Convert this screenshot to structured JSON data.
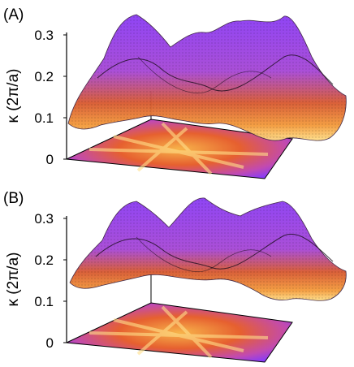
{
  "chart_data": [
    {
      "type": "surface",
      "panel_label": "(A)",
      "ylabel": "κ (2π/a)",
      "z_ticks": [
        "0",
        "0.1",
        "0.2",
        "0.3"
      ],
      "z_tick_values": [
        0,
        0.1,
        0.2,
        0.3
      ],
      "zlim": [
        0,
        0.3
      ],
      "surface": {
        "kind": "3D surface with black dot mesh over purple-to-orange colormap",
        "min_kappa": 0.07,
        "max_kappa": 0.33,
        "corner_kappa": 0.13,
        "edge_peak_kappa": 0.31
      },
      "projection": "color map projected on the base plane",
      "colormap": [
        "#7a3cff",
        "#b243c9",
        "#e8583a",
        "#f7a23c",
        "#ffe487"
      ],
      "grid": false,
      "legend": "none"
    },
    {
      "type": "surface",
      "panel_label": "(B)",
      "ylabel": "κ (2π/a)",
      "z_ticks": [
        "0",
        "0.1",
        "0.2",
        "0.3"
      ],
      "z_tick_values": [
        0,
        0.1,
        0.2,
        0.3
      ],
      "zlim": [
        0,
        0.3
      ],
      "surface": {
        "kind": "3D surface with black dot mesh over purple-to-orange colormap",
        "min_kappa": 0.11,
        "max_kappa": 0.33,
        "corner_kappa": 0.16,
        "edge_peak_kappa": 0.31
      },
      "projection": "color map projected on the base plane",
      "colormap": [
        "#7a3cff",
        "#b243c9",
        "#e8583a",
        "#f7a23c",
        "#ffe487"
      ],
      "grid": false,
      "legend": "none"
    }
  ]
}
